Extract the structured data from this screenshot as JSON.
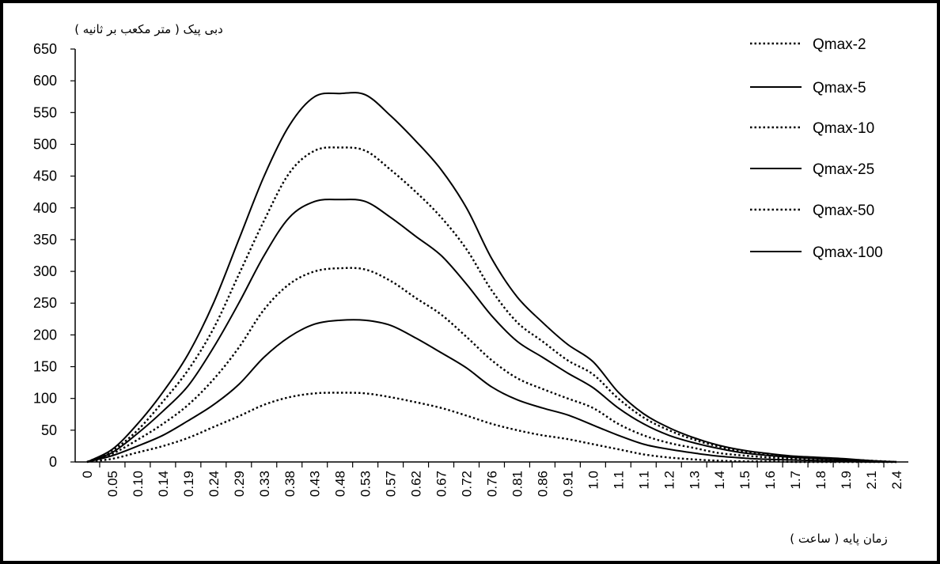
{
  "chart_data": {
    "type": "line",
    "title": "",
    "ylabel": "دبی پیک ( متر مکعب بر ثانیه )",
    "xlabel": "زمان پایه ( ساعت )",
    "ylim": [
      0,
      650
    ],
    "yticks": [
      "0",
      "50",
      "100",
      "150",
      "200",
      "250",
      "300",
      "350",
      "400",
      "450",
      "500",
      "550",
      "600",
      "650"
    ],
    "categories": [
      "0",
      "0.05",
      "0.10",
      "0.14",
      "0.19",
      "0.24",
      "0.29",
      "0.33",
      "0.38",
      "0.43",
      "0.48",
      "0.53",
      "0.57",
      "0.62",
      "0.67",
      "0.72",
      "0.76",
      "0.81",
      "0.86",
      "0.91",
      "1.0",
      "1.1",
      "1.1",
      "1.2",
      "1.3",
      "1.4",
      "1.5",
      "1.6",
      "1.7",
      "1.8",
      "1.9",
      "2.1",
      "2.4"
    ],
    "legend_position": "top-right",
    "grid": false,
    "series": [
      {
        "name": "Qmax-2",
        "style": "dotted",
        "values": [
          0,
          5,
          15,
          25,
          38,
          55,
          72,
          90,
          102,
          108,
          109,
          108,
          102,
          94,
          85,
          73,
          60,
          50,
          42,
          36,
          28,
          20,
          12,
          7,
          4,
          2,
          1,
          1,
          0,
          0,
          0,
          0,
          0
        ]
      },
      {
        "name": "Qmax-5",
        "style": "solid",
        "values": [
          0,
          10,
          25,
          42,
          65,
          90,
          122,
          165,
          197,
          217,
          223,
          223,
          215,
          195,
          172,
          148,
          118,
          98,
          85,
          74,
          58,
          42,
          28,
          20,
          14,
          9,
          6,
          4,
          3,
          2,
          1,
          0,
          0
        ]
      },
      {
        "name": "Qmax-10",
        "style": "dotted",
        "values": [
          0,
          13,
          35,
          60,
          90,
          130,
          180,
          240,
          280,
          300,
          305,
          303,
          285,
          258,
          232,
          197,
          160,
          132,
          115,
          100,
          85,
          60,
          42,
          30,
          22,
          14,
          10,
          7,
          5,
          3,
          2,
          1,
          0
        ]
      },
      {
        "name": "Qmax-25",
        "style": "solid",
        "values": [
          0,
          15,
          45,
          80,
          120,
          180,
          250,
          325,
          385,
          410,
          413,
          410,
          385,
          355,
          325,
          280,
          230,
          190,
          165,
          140,
          117,
          85,
          60,
          42,
          30,
          21,
          14,
          10,
          7,
          5,
          3,
          1,
          0
        ]
      },
      {
        "name": "Qmax-50",
        "style": "dotted",
        "values": [
          0,
          18,
          50,
          95,
          145,
          210,
          295,
          380,
          455,
          490,
          495,
          490,
          460,
          425,
          385,
          335,
          270,
          220,
          190,
          160,
          138,
          100,
          70,
          50,
          35,
          24,
          16,
          11,
          8,
          6,
          4,
          2,
          0
        ]
      },
      {
        "name": "Qmax-100",
        "style": "solid",
        "values": [
          0,
          20,
          60,
          110,
          170,
          250,
          350,
          450,
          530,
          575,
          580,
          578,
          545,
          505,
          460,
          400,
          320,
          260,
          220,
          185,
          158,
          110,
          76,
          54,
          38,
          26,
          18,
          13,
          9,
          7,
          5,
          2,
          0
        ]
      }
    ]
  }
}
